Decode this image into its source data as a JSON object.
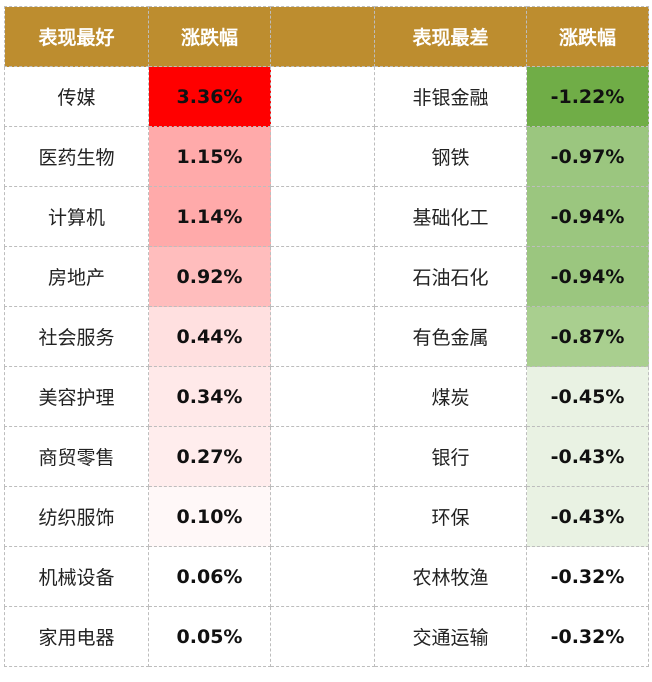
{
  "headers": {
    "best": "表现最好",
    "change": "涨跌幅",
    "gap": "",
    "worst": "表现最差",
    "change2": "涨跌幅"
  },
  "colors": {
    "header_bg": "#bd8d2f",
    "header_text": "#ffffff"
  },
  "rows": [
    {
      "best_name": "传媒",
      "best_value": "3.36%",
      "best_color": "#ff0000",
      "worst_name": "非银金融",
      "worst_value": "-1.22%",
      "worst_color": "#70ad47"
    },
    {
      "best_name": "医药生物",
      "best_value": "1.15%",
      "best_color": "#ffaaaa",
      "worst_name": "钢铁",
      "worst_value": "-0.97%",
      "worst_color": "#9bc67f"
    },
    {
      "best_name": "计算机",
      "best_value": "1.14%",
      "best_color": "#ffaaaa",
      "worst_name": "基础化工",
      "worst_value": "-0.94%",
      "worst_color": "#9bc67f"
    },
    {
      "best_name": "房地产",
      "best_value": "0.92%",
      "best_color": "#ffbdbd",
      "worst_name": "石油石化",
      "worst_value": "-0.94%",
      "worst_color": "#9bc67f"
    },
    {
      "best_name": "社会服务",
      "best_value": "0.44%",
      "best_color": "#ffe0e0",
      "worst_name": "有色金属",
      "worst_value": "-0.87%",
      "worst_color": "#a9cf8f"
    },
    {
      "best_name": "美容护理",
      "best_value": "0.34%",
      "best_color": "#ffe9e9",
      "worst_name": "煤炭",
      "worst_value": "-0.45%",
      "worst_color": "#e9f2e3"
    },
    {
      "best_name": "商贸零售",
      "best_value": "0.27%",
      "best_color": "#ffeded",
      "worst_name": "银行",
      "worst_value": "-0.43%",
      "worst_color": "#e9f2e3"
    },
    {
      "best_name": "纺织服饰",
      "best_value": "0.10%",
      "best_color": "#fff8f8",
      "worst_name": "环保",
      "worst_value": "-0.43%",
      "worst_color": "#e9f2e3"
    },
    {
      "best_name": "机械设备",
      "best_value": "0.06%",
      "best_color": "#ffffff",
      "worst_name": "农林牧渔",
      "worst_value": "-0.32%",
      "worst_color": "#ffffff"
    },
    {
      "best_name": "家用电器",
      "best_value": "0.05%",
      "best_color": "#ffffff",
      "worst_name": "交通运输",
      "worst_value": "-0.32%",
      "worst_color": "#ffffff"
    }
  ]
}
